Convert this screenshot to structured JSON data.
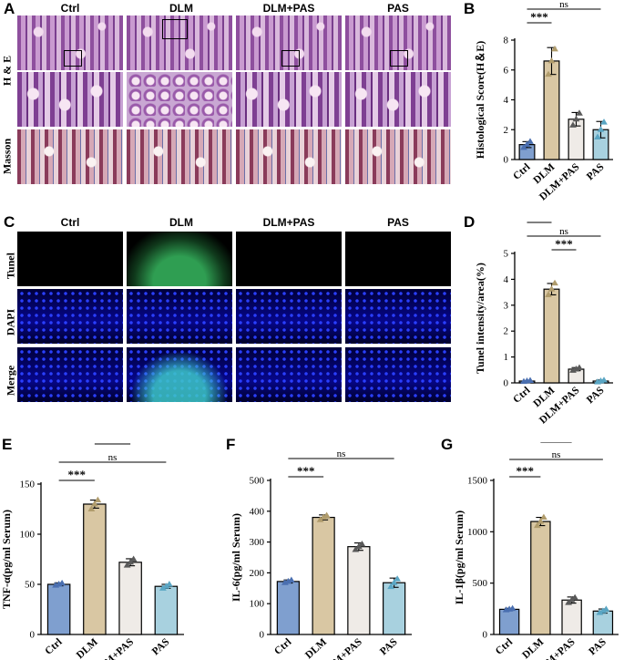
{
  "panels": {
    "A": {
      "label": "A",
      "groups": [
        "Ctrl",
        "DLM",
        "DLM+PAS",
        "PAS"
      ],
      "rows": [
        "H & E",
        "Masson"
      ]
    },
    "C": {
      "label": "C",
      "groups": [
        "Ctrl",
        "DLM",
        "DLM+PAS",
        "PAS"
      ],
      "rows": [
        "Tunel",
        "DAPI",
        "Merge"
      ]
    }
  },
  "colors": {
    "Ctrl": "#7f9fcf",
    "DLM": "#d9c7a3",
    "DLM+PAS": "#efebe7",
    "PAS": "#a8d1df",
    "Ctrl_pt": "#4a6fb0",
    "DLM_pt": "#b09c6c",
    "DLM+PAS_pt": "#5a5a5a",
    "PAS_pt": "#5aa6c4"
  },
  "chart_data": [
    {
      "panel": "B",
      "type": "bar",
      "categories": [
        "Ctrl",
        "DLM",
        "DLM+PAS",
        "PAS"
      ],
      "values": [
        1.0,
        6.6,
        2.7,
        2.0
      ],
      "errors": [
        0.2,
        0.9,
        0.45,
        0.55
      ],
      "points": [
        [
          0.8,
          1.0,
          1.2
        ],
        [
          5.7,
          6.6,
          7.4
        ],
        [
          2.3,
          2.7,
          3.1
        ],
        [
          1.5,
          2.0,
          2.5
        ]
      ],
      "ylabel": "Histological Score(H＆E)",
      "ylim": [
        0,
        8
      ],
      "yticks": [
        0,
        2,
        4,
        6,
        8
      ],
      "sig": [
        {
          "from": 0,
          "to": 1,
          "text": "***",
          "level": 2
        },
        {
          "from": 0,
          "to": 3,
          "text": "ns",
          "level": 3
        },
        {
          "from": 1,
          "to": 2,
          "text": "***",
          "level": 4
        }
      ]
    },
    {
      "panel": "D",
      "type": "bar",
      "categories": [
        "Ctrl",
        "DLM",
        "DLM+PAS",
        "PAS"
      ],
      "values": [
        0.07,
        3.62,
        0.53,
        0.07
      ],
      "errors": [
        0.02,
        0.22,
        0.06,
        0.04
      ],
      "points": [
        [
          0.05,
          0.07,
          0.09
        ],
        [
          3.4,
          3.62,
          3.85
        ],
        [
          0.48,
          0.53,
          0.58
        ],
        [
          0.03,
          0.07,
          0.1
        ]
      ],
      "ylabel": "Tunel intensity/area(%)",
      "ylim": [
        0,
        5
      ],
      "yticks": [
        0,
        1,
        2,
        3,
        4,
        5
      ],
      "sig": [
        {
          "from": 0,
          "to": 1,
          "text": "***",
          "level": 3
        },
        {
          "from": 0,
          "to": 3,
          "text": "ns",
          "level": 2
        },
        {
          "from": 1,
          "to": 2,
          "text": "***",
          "level": 1
        }
      ]
    },
    {
      "panel": "E",
      "type": "bar",
      "categories": [
        "Ctrl",
        "DLM",
        "DLM+PAS",
        "PAS"
      ],
      "values": [
        50,
        130,
        72,
        48
      ],
      "errors": [
        1.5,
        4,
        3.5,
        2
      ],
      "points": [
        [
          49,
          50,
          51
        ],
        [
          125,
          130,
          134
        ],
        [
          69,
          72,
          75
        ],
        [
          46,
          48,
          50
        ]
      ],
      "ylabel": "TNF-α(pg/ml Serum)",
      "ylim": [
        0,
        150
      ],
      "yticks": [
        0,
        50,
        100,
        150
      ],
      "sig": [
        {
          "from": 0,
          "to": 1,
          "text": "***",
          "level": 1
        },
        {
          "from": 0,
          "to": 3,
          "text": "ns",
          "level": 2
        },
        {
          "from": 1,
          "to": 2,
          "text": "***",
          "level": 3
        }
      ]
    },
    {
      "panel": "F",
      "type": "bar",
      "categories": [
        "Ctrl",
        "DLM",
        "DLM+PAS",
        "PAS"
      ],
      "values": [
        172,
        380,
        285,
        168
      ],
      "errors": [
        5,
        8,
        12,
        15
      ],
      "points": [
        [
          168,
          172,
          176
        ],
        [
          372,
          380,
          386
        ],
        [
          275,
          285,
          293
        ],
        [
          155,
          168,
          180
        ]
      ],
      "ylabel": "IL-6(pg/ml Serum)",
      "ylim": [
        0,
        500
      ],
      "yticks": [
        0,
        100,
        200,
        300,
        400,
        500
      ],
      "sig": [
        {
          "from": 0,
          "to": 1,
          "text": "***",
          "level": 1
        },
        {
          "from": 0,
          "to": 3,
          "text": "ns",
          "level": 2
        },
        {
          "from": 1,
          "to": 2,
          "text": "***",
          "level": 3
        }
      ]
    },
    {
      "panel": "G",
      "type": "bar",
      "categories": [
        "Ctrl",
        "DLM",
        "DLM+PAS",
        "PAS"
      ],
      "values": [
        245,
        1100,
        335,
        228
      ],
      "errors": [
        10,
        40,
        30,
        20
      ],
      "points": [
        [
          238,
          245,
          252
        ],
        [
          1060,
          1100,
          1140
        ],
        [
          310,
          335,
          358
        ],
        [
          212,
          228,
          245
        ]
      ],
      "ylabel": "IL-1β(pg/ml Serum)",
      "ylim": [
        0,
        1500
      ],
      "yticks": [
        0,
        500,
        1000,
        1500
      ],
      "sig": [
        {
          "from": 0,
          "to": 1,
          "text": "***",
          "level": 1
        },
        {
          "from": 0,
          "to": 3,
          "text": "ns",
          "level": 2
        },
        {
          "from": 1,
          "to": 2,
          "text": "***",
          "level": 3
        }
      ]
    }
  ]
}
